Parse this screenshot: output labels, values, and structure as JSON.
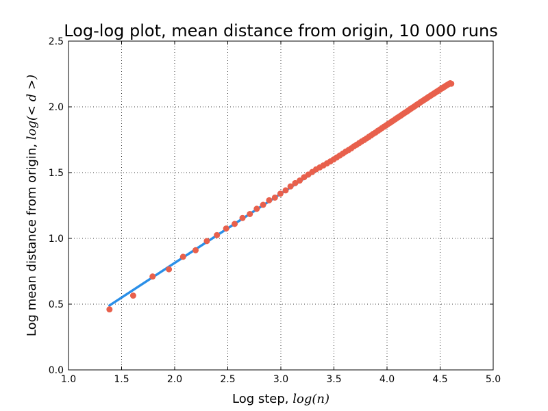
{
  "chart_data": {
    "type": "scatter",
    "title": "Log-log plot, mean distance from origin, 10 000 runs",
    "xlabel": "Log step, ",
    "xlabel_math": "log(n)",
    "ylabel": "Log mean distance from origin, ",
    "ylabel_math": "log(< d >)",
    "xlim": [
      1.0,
      5.0
    ],
    "ylim": [
      0.0,
      2.5
    ],
    "xticks": [
      1.0,
      1.5,
      2.0,
      2.5,
      3.0,
      3.5,
      4.0,
      4.5,
      5.0
    ],
    "yticks": [
      0.0,
      0.5,
      1.0,
      1.5,
      2.0,
      2.5
    ],
    "xtick_labels": [
      "1.0",
      "1.5",
      "2.0",
      "2.5",
      "3.0",
      "3.5",
      "4.0",
      "4.5",
      "5.0"
    ],
    "ytick_labels": [
      "0.0",
      "0.5",
      "1.0",
      "1.5",
      "2.0",
      "2.5"
    ],
    "grid": true,
    "colors": {
      "points": "#e8604c",
      "fit_line": "#2a8fe8",
      "grid": "#000000",
      "axes": "#000000"
    },
    "series": [
      {
        "kind": "points",
        "x": [
          1.386,
          1.609,
          1.792,
          1.946,
          2.079,
          2.197,
          2.303,
          2.398,
          2.485,
          2.565,
          2.639,
          2.708,
          2.773,
          2.833,
          2.89,
          2.944,
          2.996,
          3.045,
          3.091,
          3.135,
          3.178,
          3.219,
          3.258,
          3.296,
          3.332,
          3.367,
          3.401,
          3.434,
          3.466,
          3.497,
          3.526,
          3.555,
          3.584,
          3.611,
          3.638,
          3.664,
          3.689,
          3.714,
          3.738,
          3.761,
          3.784,
          3.807,
          3.829,
          3.85,
          3.871,
          3.892,
          3.912,
          3.932,
          3.951,
          3.97,
          3.989,
          4.007,
          4.025,
          4.043,
          4.06,
          4.078,
          4.094,
          4.111,
          4.127,
          4.143,
          4.159,
          4.174,
          4.19,
          4.205,
          4.22,
          4.234,
          4.248,
          4.263,
          4.277,
          4.29,
          4.304,
          4.317,
          4.331,
          4.344,
          4.357,
          4.369,
          4.382,
          4.394,
          4.407,
          4.419,
          4.431,
          4.443,
          4.454,
          4.466,
          4.477,
          4.489,
          4.5,
          4.511,
          4.522,
          4.533,
          4.543,
          4.554,
          4.564,
          4.575,
          4.585,
          4.595,
          4.605
        ],
        "y": [
          0.46,
          0.565,
          0.71,
          0.765,
          0.86,
          0.91,
          0.98,
          1.025,
          1.075,
          1.11,
          1.155,
          1.185,
          1.225,
          1.255,
          1.29,
          1.31,
          1.34,
          1.365,
          1.395,
          1.42,
          1.44,
          1.465,
          1.485,
          1.505,
          1.525,
          1.54,
          1.555,
          1.57,
          1.585,
          1.6,
          1.615,
          1.63,
          1.645,
          1.66,
          1.672,
          1.685,
          1.7,
          1.712,
          1.725,
          1.737,
          1.748,
          1.76,
          1.772,
          1.783,
          1.795,
          1.805,
          1.817,
          1.827,
          1.838,
          1.848,
          1.858,
          1.868,
          1.877,
          1.887,
          1.896,
          1.906,
          1.915,
          1.924,
          1.932,
          1.941,
          1.95,
          1.958,
          1.966,
          1.975,
          1.983,
          1.991,
          1.998,
          2.006,
          2.014,
          2.021,
          2.028,
          2.036,
          2.043,
          2.05,
          2.057,
          2.063,
          2.07,
          2.077,
          2.083,
          2.09,
          2.096,
          2.102,
          2.108,
          2.114,
          2.12,
          2.126,
          2.132,
          2.138,
          2.143,
          2.149,
          2.154,
          2.16,
          2.165,
          2.17,
          2.175,
          2.18,
          2.176
        ]
      },
      {
        "kind": "line",
        "x": [
          1.386,
          4.605
        ],
        "y": [
          0.49,
          2.185
        ]
      }
    ]
  }
}
